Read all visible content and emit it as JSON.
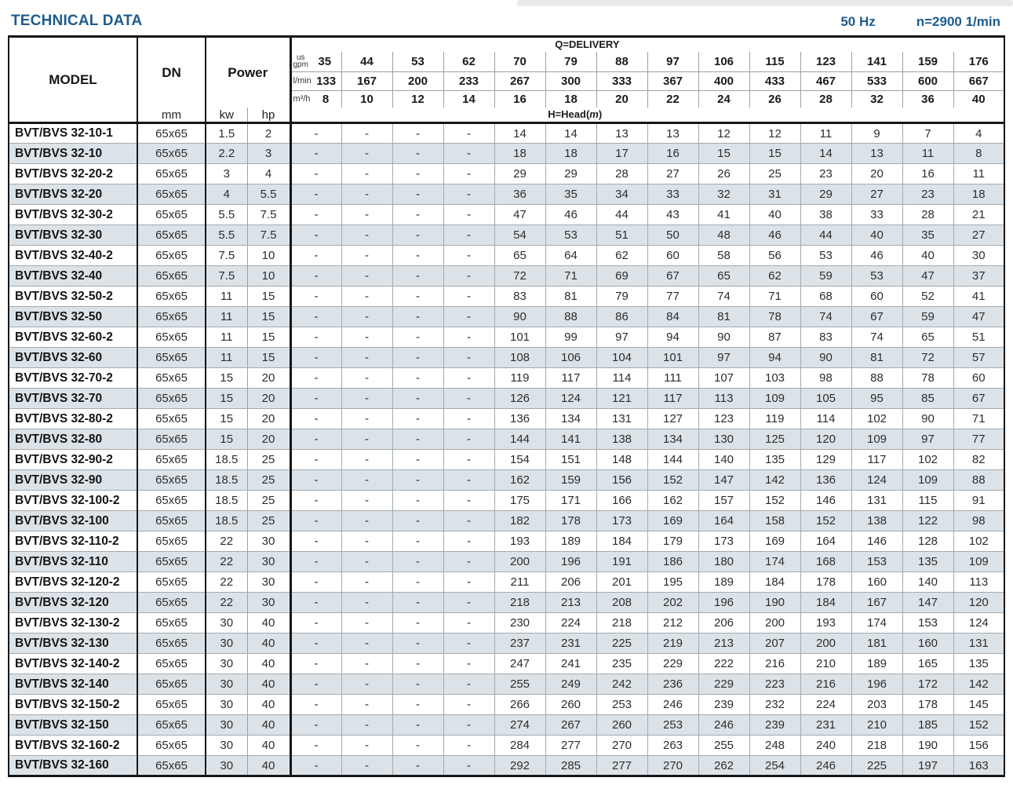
{
  "header": {
    "title": "TECHNICAL DATA",
    "frequency": "50 Hz",
    "speed": "n=2900 1/min"
  },
  "table": {
    "model_header": "MODEL",
    "dn_header": "DN",
    "dn_unit": "mm",
    "power_header": "Power",
    "power_unit_kw": "kw",
    "power_unit_hp": "hp",
    "delivery_label": "Q=DELIVERY",
    "head_label_prefix": "H=Head(",
    "head_label_m": "m",
    "head_label_suffix": ")",
    "unit_gpm_line1": "us",
    "unit_gpm_line2": "gpm",
    "unit_lmin": "l/min",
    "unit_m3h": "m³/h",
    "us_gpm": [
      "35",
      "44",
      "53",
      "62",
      "70",
      "79",
      "88",
      "97",
      "106",
      "115",
      "123",
      "141",
      "159",
      "176"
    ],
    "l_min": [
      "133",
      "167",
      "200",
      "233",
      "267",
      "300",
      "333",
      "367",
      "400",
      "433",
      "467",
      "533",
      "600",
      "667"
    ],
    "m3_h": [
      "8",
      "10",
      "12",
      "14",
      "16",
      "18",
      "20",
      "22",
      "24",
      "26",
      "28",
      "32",
      "36",
      "40"
    ],
    "rows": [
      {
        "model": "BVT/BVS 32-10-1",
        "dn": "65x65",
        "kw": "1.5",
        "hp": "2",
        "heads": [
          "-",
          "-",
          "-",
          "-",
          "14",
          "14",
          "13",
          "13",
          "12",
          "12",
          "11",
          "9",
          "7",
          "4"
        ]
      },
      {
        "model": "BVT/BVS 32-10",
        "dn": "65x65",
        "kw": "2.2",
        "hp": "3",
        "heads": [
          "-",
          "-",
          "-",
          "-",
          "18",
          "18",
          "17",
          "16",
          "15",
          "15",
          "14",
          "13",
          "11",
          "8"
        ]
      },
      {
        "model": "BVT/BVS 32-20-2",
        "dn": "65x65",
        "kw": "3",
        "hp": "4",
        "heads": [
          "-",
          "-",
          "-",
          "-",
          "29",
          "29",
          "28",
          "27",
          "26",
          "25",
          "23",
          "20",
          "16",
          "11"
        ]
      },
      {
        "model": "BVT/BVS 32-20",
        "dn": "65x65",
        "kw": "4",
        "hp": "5.5",
        "heads": [
          "-",
          "-",
          "-",
          "-",
          "36",
          "35",
          "34",
          "33",
          "32",
          "31",
          "29",
          "27",
          "23",
          "18"
        ]
      },
      {
        "model": "BVT/BVS 32-30-2",
        "dn": "65x65",
        "kw": "5.5",
        "hp": "7.5",
        "heads": [
          "-",
          "-",
          "-",
          "-",
          "47",
          "46",
          "44",
          "43",
          "41",
          "40",
          "38",
          "33",
          "28",
          "21"
        ]
      },
      {
        "model": "BVT/BVS 32-30",
        "dn": "65x65",
        "kw": "5.5",
        "hp": "7.5",
        "heads": [
          "-",
          "-",
          "-",
          "-",
          "54",
          "53",
          "51",
          "50",
          "48",
          "46",
          "44",
          "40",
          "35",
          "27"
        ]
      },
      {
        "model": "BVT/BVS 32-40-2",
        "dn": "65x65",
        "kw": "7.5",
        "hp": "10",
        "heads": [
          "-",
          "-",
          "-",
          "-",
          "65",
          "64",
          "62",
          "60",
          "58",
          "56",
          "53",
          "46",
          "40",
          "30"
        ]
      },
      {
        "model": "BVT/BVS 32-40",
        "dn": "65x65",
        "kw": "7.5",
        "hp": "10",
        "heads": [
          "-",
          "-",
          "-",
          "-",
          "72",
          "71",
          "69",
          "67",
          "65",
          "62",
          "59",
          "53",
          "47",
          "37"
        ]
      },
      {
        "model": "BVT/BVS 32-50-2",
        "dn": "65x65",
        "kw": "11",
        "hp": "15",
        "heads": [
          "-",
          "-",
          "-",
          "-",
          "83",
          "81",
          "79",
          "77",
          "74",
          "71",
          "68",
          "60",
          "52",
          "41"
        ]
      },
      {
        "model": "BVT/BVS 32-50",
        "dn": "65x65",
        "kw": "11",
        "hp": "15",
        "heads": [
          "-",
          "-",
          "-",
          "-",
          "90",
          "88",
          "86",
          "84",
          "81",
          "78",
          "74",
          "67",
          "59",
          "47"
        ]
      },
      {
        "model": "BVT/BVS 32-60-2",
        "dn": "65x65",
        "kw": "11",
        "hp": "15",
        "heads": [
          "-",
          "-",
          "-",
          "-",
          "101",
          "99",
          "97",
          "94",
          "90",
          "87",
          "83",
          "74",
          "65",
          "51"
        ]
      },
      {
        "model": "BVT/BVS 32-60",
        "dn": "65x65",
        "kw": "11",
        "hp": "15",
        "heads": [
          "-",
          "-",
          "-",
          "-",
          "108",
          "106",
          "104",
          "101",
          "97",
          "94",
          "90",
          "81",
          "72",
          "57"
        ]
      },
      {
        "model": "BVT/BVS 32-70-2",
        "dn": "65x65",
        "kw": "15",
        "hp": "20",
        "heads": [
          "-",
          "-",
          "-",
          "-",
          "119",
          "117",
          "114",
          "111",
          "107",
          "103",
          "98",
          "88",
          "78",
          "60"
        ]
      },
      {
        "model": "BVT/BVS 32-70",
        "dn": "65x65",
        "kw": "15",
        "hp": "20",
        "heads": [
          "-",
          "-",
          "-",
          "-",
          "126",
          "124",
          "121",
          "117",
          "113",
          "109",
          "105",
          "95",
          "85",
          "67"
        ]
      },
      {
        "model": "BVT/BVS 32-80-2",
        "dn": "65x65",
        "kw": "15",
        "hp": "20",
        "heads": [
          "-",
          "-",
          "-",
          "-",
          "136",
          "134",
          "131",
          "127",
          "123",
          "119",
          "114",
          "102",
          "90",
          "71"
        ]
      },
      {
        "model": "BVT/BVS 32-80",
        "dn": "65x65",
        "kw": "15",
        "hp": "20",
        "heads": [
          "-",
          "-",
          "-",
          "-",
          "144",
          "141",
          "138",
          "134",
          "130",
          "125",
          "120",
          "109",
          "97",
          "77"
        ]
      },
      {
        "model": "BVT/BVS 32-90-2",
        "dn": "65x65",
        "kw": "18.5",
        "hp": "25",
        "heads": [
          "-",
          "-",
          "-",
          "-",
          "154",
          "151",
          "148",
          "144",
          "140",
          "135",
          "129",
          "117",
          "102",
          "82"
        ]
      },
      {
        "model": "BVT/BVS 32-90",
        "dn": "65x65",
        "kw": "18.5",
        "hp": "25",
        "heads": [
          "-",
          "-",
          "-",
          "-",
          "162",
          "159",
          "156",
          "152",
          "147",
          "142",
          "136",
          "124",
          "109",
          "88"
        ]
      },
      {
        "model": "BVT/BVS 32-100-2",
        "dn": "65x65",
        "kw": "18.5",
        "hp": "25",
        "heads": [
          "-",
          "-",
          "-",
          "-",
          "175",
          "171",
          "166",
          "162",
          "157",
          "152",
          "146",
          "131",
          "115",
          "91"
        ]
      },
      {
        "model": "BVT/BVS 32-100",
        "dn": "65x65",
        "kw": "18.5",
        "hp": "25",
        "heads": [
          "-",
          "-",
          "-",
          "-",
          "182",
          "178",
          "173",
          "169",
          "164",
          "158",
          "152",
          "138",
          "122",
          "98"
        ]
      },
      {
        "model": "BVT/BVS 32-110-2",
        "dn": "65x65",
        "kw": "22",
        "hp": "30",
        "heads": [
          "-",
          "-",
          "-",
          "-",
          "193",
          "189",
          "184",
          "179",
          "173",
          "169",
          "164",
          "146",
          "128",
          "102"
        ]
      },
      {
        "model": "BVT/BVS 32-110",
        "dn": "65x65",
        "kw": "22",
        "hp": "30",
        "heads": [
          "-",
          "-",
          "-",
          "-",
          "200",
          "196",
          "191",
          "186",
          "180",
          "174",
          "168",
          "153",
          "135",
          "109"
        ]
      },
      {
        "model": "BVT/BVS 32-120-2",
        "dn": "65x65",
        "kw": "22",
        "hp": "30",
        "heads": [
          "-",
          "-",
          "-",
          "-",
          "211",
          "206",
          "201",
          "195",
          "189",
          "184",
          "178",
          "160",
          "140",
          "113"
        ]
      },
      {
        "model": "BVT/BVS 32-120",
        "dn": "65x65",
        "kw": "22",
        "hp": "30",
        "heads": [
          "-",
          "-",
          "-",
          "-",
          "218",
          "213",
          "208",
          "202",
          "196",
          "190",
          "184",
          "167",
          "147",
          "120"
        ]
      },
      {
        "model": "BVT/BVS 32-130-2",
        "dn": "65x65",
        "kw": "30",
        "hp": "40",
        "heads": [
          "-",
          "-",
          "-",
          "-",
          "230",
          "224",
          "218",
          "212",
          "206",
          "200",
          "193",
          "174",
          "153",
          "124"
        ]
      },
      {
        "model": "BVT/BVS 32-130",
        "dn": "65x65",
        "kw": "30",
        "hp": "40",
        "heads": [
          "-",
          "-",
          "-",
          "-",
          "237",
          "231",
          "225",
          "219",
          "213",
          "207",
          "200",
          "181",
          "160",
          "131"
        ]
      },
      {
        "model": "BVT/BVS 32-140-2",
        "dn": "65x65",
        "kw": "30",
        "hp": "40",
        "heads": [
          "-",
          "-",
          "-",
          "-",
          "247",
          "241",
          "235",
          "229",
          "222",
          "216",
          "210",
          "189",
          "165",
          "135"
        ]
      },
      {
        "model": "BVT/BVS 32-140",
        "dn": "65x65",
        "kw": "30",
        "hp": "40",
        "heads": [
          "-",
          "-",
          "-",
          "-",
          "255",
          "249",
          "242",
          "236",
          "229",
          "223",
          "216",
          "196",
          "172",
          "142"
        ]
      },
      {
        "model": "BVT/BVS 32-150-2",
        "dn": "65x65",
        "kw": "30",
        "hp": "40",
        "heads": [
          "-",
          "-",
          "-",
          "-",
          "266",
          "260",
          "253",
          "246",
          "239",
          "232",
          "224",
          "203",
          "178",
          "145"
        ]
      },
      {
        "model": "BVT/BVS 32-150",
        "dn": "65x65",
        "kw": "30",
        "hp": "40",
        "heads": [
          "-",
          "-",
          "-",
          "-",
          "274",
          "267",
          "260",
          "253",
          "246",
          "239",
          "231",
          "210",
          "185",
          "152"
        ]
      },
      {
        "model": "BVT/BVS 32-160-2",
        "dn": "65x65",
        "kw": "30",
        "hp": "40",
        "heads": [
          "-",
          "-",
          "-",
          "-",
          "284",
          "277",
          "270",
          "263",
          "255",
          "248",
          "240",
          "218",
          "190",
          "156"
        ]
      },
      {
        "model": "BVT/BVS 32-160",
        "dn": "65x65",
        "kw": "30",
        "hp": "40",
        "heads": [
          "-",
          "-",
          "-",
          "-",
          "292",
          "285",
          "277",
          "270",
          "262",
          "254",
          "246",
          "225",
          "197",
          "163"
        ]
      }
    ]
  }
}
